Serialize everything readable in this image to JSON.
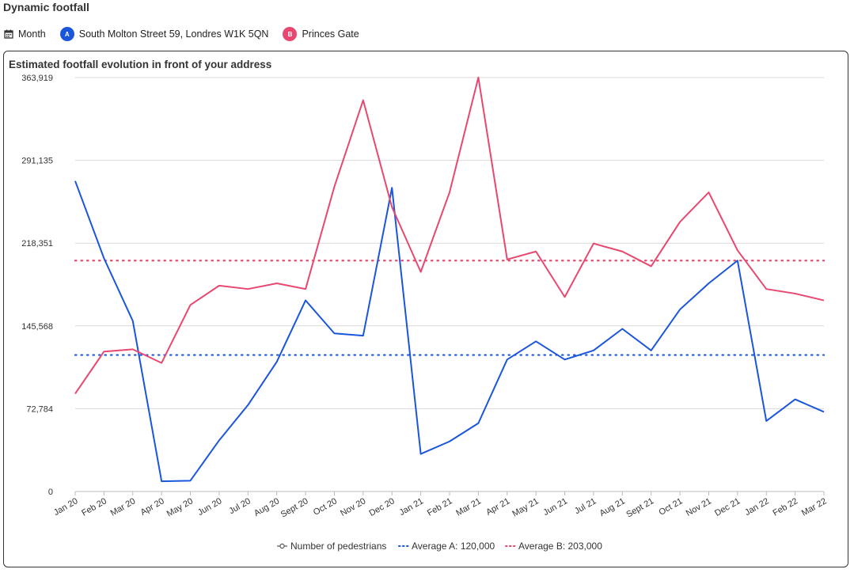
{
  "page": {
    "title": "Dynamic footfall"
  },
  "filters": {
    "period_icon": "calendar-icon",
    "period_label": "Month",
    "address_a_badge": "A",
    "address_a_label": "South Molton Street 59, Londres W1K 5QN",
    "address_b_badge": "B",
    "address_b_label": "Princes Gate"
  },
  "colors": {
    "series_a": "#1a56db",
    "series_b": "#e8486f",
    "grid": "#d9d9d9"
  },
  "chart_data": {
    "type": "line",
    "title": "Estimated footfall evolution in front of your address",
    "xlabel": "",
    "ylabel": "",
    "ylim": [
      0,
      363919
    ],
    "y_ticks": [
      0,
      72784,
      145568,
      218351,
      291135,
      363919
    ],
    "y_tick_labels": [
      "0",
      "72,784",
      "145,568",
      "218,351",
      "291,135",
      "363,919"
    ],
    "categories": [
      "Jan 20",
      "Feb 20",
      "Mar 20",
      "Apr 20",
      "May 20",
      "Jun 20",
      "Jul 20",
      "Aug 20",
      "Sept 20",
      "Oct 20",
      "Nov 20",
      "Dec 20",
      "Jan 21",
      "Feb 21",
      "Mar 21",
      "Apr 21",
      "May 21",
      "Jun 21",
      "Jul 21",
      "Aug 21",
      "Sept 21",
      "Oct 21",
      "Nov 21",
      "Dec 21",
      "Jan 22",
      "Feb 22",
      "Mar 22"
    ],
    "series": [
      {
        "key": "a",
        "values": [
          273000,
          205000,
          150000,
          9000,
          9500,
          45000,
          76000,
          114000,
          168000,
          139000,
          137000,
          267000,
          33000,
          44000,
          60000,
          116000,
          132000,
          116000,
          124000,
          143000,
          124000,
          160000,
          183000,
          203000,
          62000,
          81000,
          70000
        ]
      },
      {
        "key": "b",
        "values": [
          86000,
          123000,
          125000,
          113000,
          164000,
          181000,
          178000,
          183000,
          178000,
          268000,
          344000,
          250000,
          193000,
          263000,
          364000,
          204000,
          211000,
          171000,
          218000,
          211000,
          198000,
          237000,
          263000,
          212000,
          178000,
          174000,
          168000
        ]
      }
    ],
    "reference_lines": [
      {
        "key": "avg_a",
        "value": 120000
      },
      {
        "key": "avg_b",
        "value": 203000
      }
    ],
    "legend": {
      "placement": "bottom",
      "items": [
        "Number of pedestrians",
        "Average A: 120,000",
        "Average B: 203,000"
      ]
    },
    "grid": true
  }
}
